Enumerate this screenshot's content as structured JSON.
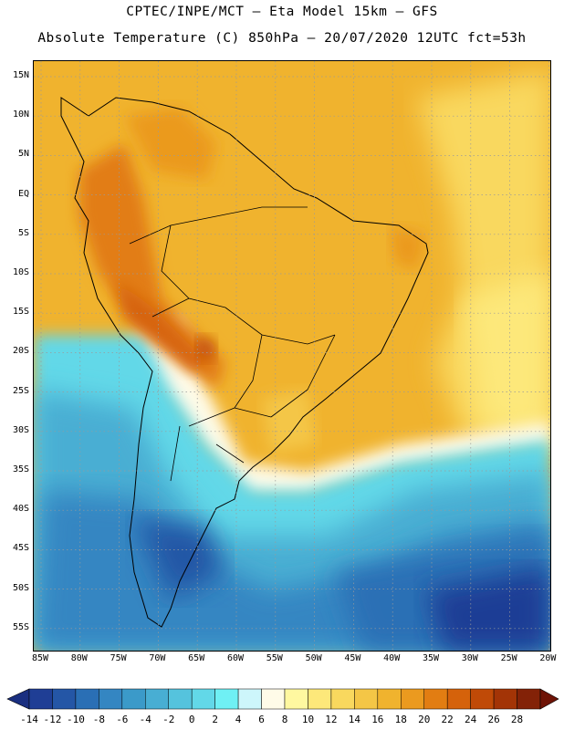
{
  "header": {
    "line1": "CPTEC/INPE/MCT –  Eta Model 15km – GFS",
    "line2": "Absolute Temperature (C) 850hPa – 20/07/2020 12UTC fct=53h"
  },
  "latitude_labels": [
    "15N",
    "10N",
    "5N",
    "EQ",
    "5S",
    "10S",
    "15S",
    "20S",
    "25S",
    "30S",
    "35S",
    "40S",
    "45S",
    "50S",
    "55S"
  ],
  "longitude_labels": [
    "85W",
    "80W",
    "75W",
    "70W",
    "65W",
    "60W",
    "55W",
    "50W",
    "45W",
    "40W",
    "35W",
    "30W",
    "25W",
    "20W"
  ],
  "colorbar": {
    "tick_labels": [
      "-14",
      "-12",
      "-10",
      "-8",
      "-6",
      "-4",
      "-2",
      "0",
      "2",
      "4",
      "6",
      "8",
      "10",
      "12",
      "14",
      "16",
      "18",
      "20",
      "22",
      "24",
      "26",
      "28"
    ],
    "colors": [
      "#1f3e95",
      "#2456a6",
      "#2a6fb5",
      "#3486c2",
      "#3b9ac9",
      "#48aed3",
      "#55c3dd",
      "#62d8e8",
      "#6ff0f4",
      "#cdf6fb",
      "#fffbe8",
      "#fff8a0",
      "#fde87a",
      "#f9d85e",
      "#f4c646",
      "#f0b32e",
      "#eb9a1f",
      "#e27d12",
      "#d5620b",
      "#c04a07",
      "#a33406",
      "#832207"
    ],
    "below_color": "#1a2f80",
    "above_color": "#6e1306"
  }
}
